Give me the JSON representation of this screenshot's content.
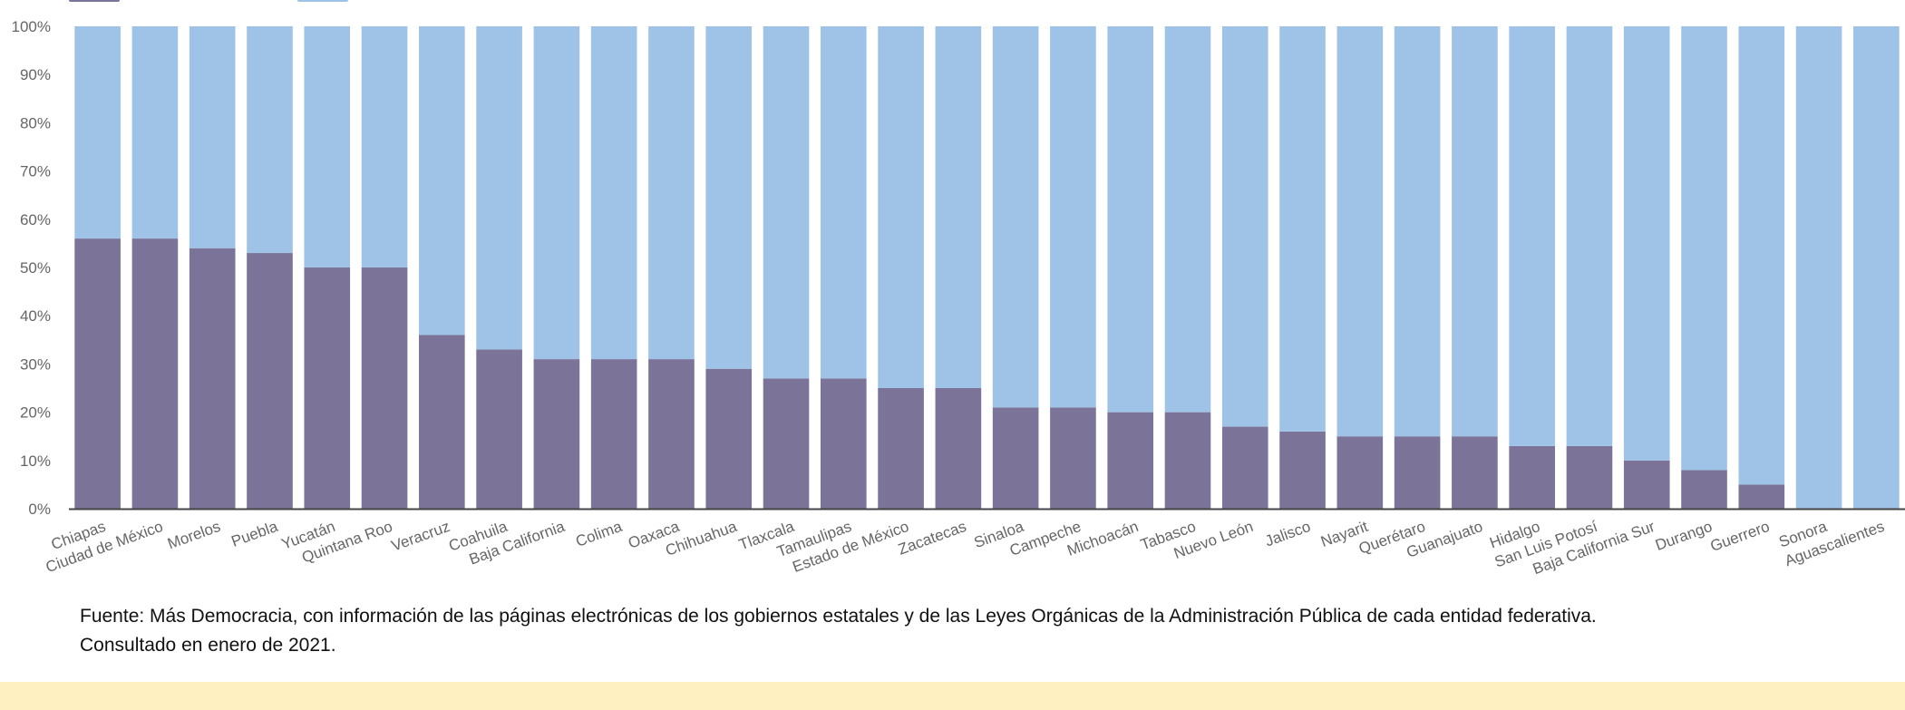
{
  "chart_data": {
    "type": "bar",
    "stacked": true,
    "percent_stacked": true,
    "categories": [
      "Chiapas",
      "Ciudad de México",
      "Morelos",
      "Puebla",
      "Yucatán",
      "Quintana Roo",
      "Veracruz",
      "Coahuila",
      "Baja California",
      "Colima",
      "Oaxaca",
      "Chihuahua",
      "Tlaxcala",
      "Tamaulipas",
      "Estado de México",
      "Zacatecas",
      "Sinaloa",
      "Campeche",
      "Michoacán",
      "Tabasco",
      "Nuevo León",
      "Jalisco",
      "Nayarit",
      "Querétaro",
      "Guanajuato",
      "Hidalgo",
      "San Luis Potosí",
      "Baja California Sur",
      "Durango",
      "Guerrero",
      "Sonora",
      "Aguascalientes"
    ],
    "series": [
      {
        "color": "#7c7399",
        "values": [
          56,
          56,
          54,
          53,
          50,
          50,
          36,
          33,
          31,
          31,
          31,
          29,
          27,
          27,
          25,
          25,
          21,
          21,
          20,
          20,
          17,
          16,
          15,
          15,
          15,
          13,
          13,
          10,
          8,
          5,
          0,
          0
        ]
      },
      {
        "color": "#9fc3e7",
        "values": [
          44,
          44,
          46,
          47,
          50,
          50,
          64,
          67,
          69,
          69,
          69,
          71,
          73,
          73,
          75,
          75,
          79,
          79,
          80,
          80,
          83,
          84,
          85,
          85,
          85,
          87,
          87,
          90,
          92,
          95,
          100,
          100
        ]
      }
    ],
    "ylim": [
      0,
      100
    ],
    "yticks": [
      "0%",
      "10%",
      "20%",
      "30%",
      "40%",
      "50%",
      "60%",
      "70%",
      "80%",
      "90%",
      "100%"
    ],
    "grid": false,
    "legend": "top-left",
    "xlabel": "",
    "ylabel": ""
  },
  "source_note": "Fuente: Más Democracia, con información de las páginas electrónicas de los gobiernos estatales y de las Leyes Orgánicas de la Administración Pública de cada entidad federativa. Consultado en enero de 2021.",
  "colors": {
    "axis": "#444444",
    "footer_band": "#fff0c2"
  }
}
